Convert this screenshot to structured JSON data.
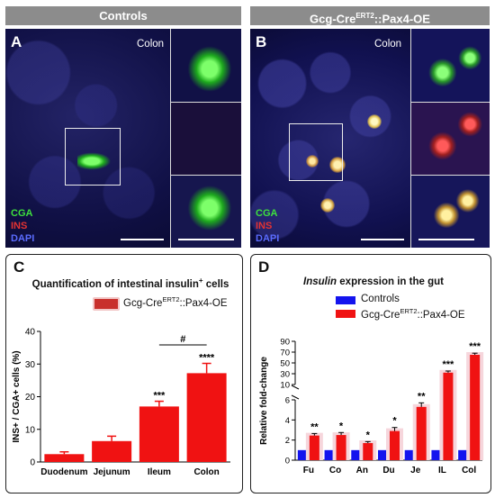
{
  "top": {
    "left_header": "Controls",
    "right_header": "Gcg-Cre",
    "right_header_sup": "ERT2",
    "right_header_suffix": "::Pax4-OE",
    "panel_a": {
      "letter": "A",
      "region": "Colon"
    },
    "panel_b": {
      "letter": "B",
      "region": "Colon"
    },
    "stain_legend": [
      "CGA",
      "INS",
      "DAPI"
    ],
    "stain_colors": [
      "#3ee03e",
      "#e23232",
      "#5b6cff"
    ]
  },
  "chart_data": [
    {
      "letter": "C",
      "type": "bar",
      "title": "Quantification of intestinal insulin",
      "title_sup": "+",
      "title_suffix": " cells",
      "legend": {
        "label": "Gcg-Cre",
        "sup": "ERT2",
        "suffix": "::Pax4-OE"
      },
      "categories": [
        "Duodenum",
        "Jejunum",
        "Ileum",
        "Colon"
      ],
      "values": [
        2.4,
        6.4,
        17.0,
        27.2
      ],
      "errors": [
        0.7,
        1.5,
        1.6,
        3.0
      ],
      "significance": [
        "",
        "",
        "***",
        "****"
      ],
      "bracket_label": "#",
      "ylabel": "INS+ / CGA+ cells (%)",
      "yticks": [
        0,
        10,
        20,
        30,
        40
      ],
      "ylim": [
        0,
        40
      ],
      "bar_color": "#f01212"
    },
    {
      "letter": "D",
      "type": "bar",
      "title": "Insulin",
      "title_suffix": " expression in the gut",
      "legend": [
        {
          "label": "Controls",
          "color": "#1414ee"
        },
        {
          "label": "Gcg-Cre",
          "sup": "ERT2",
          "suffix": "::Pax4-OE",
          "color": "#f01212"
        }
      ],
      "categories": [
        "Fu",
        "Co",
        "An",
        "Du",
        "Je",
        "IL",
        "Col"
      ],
      "series": [
        {
          "name": "Controls",
          "values": [
            1,
            1,
            1,
            1,
            1,
            1,
            1
          ]
        },
        {
          "name": "Gcg-CreERT2::Pax4-OE",
          "values": [
            2.45,
            2.5,
            1.7,
            2.9,
            5.3,
            32,
            65
          ],
          "errors": [
            0.2,
            0.25,
            0.15,
            0.35,
            0.4,
            3,
            3
          ]
        }
      ],
      "significance": [
        "**",
        "*",
        "*",
        "*",
        "**",
        "***",
        "***"
      ],
      "ylabel": "Relative fold-change",
      "yticks_lower": [
        0,
        2,
        4,
        6
      ],
      "yticks_upper": [
        10,
        30,
        50,
        70,
        90
      ],
      "axis_break": [
        6,
        10
      ]
    }
  ]
}
